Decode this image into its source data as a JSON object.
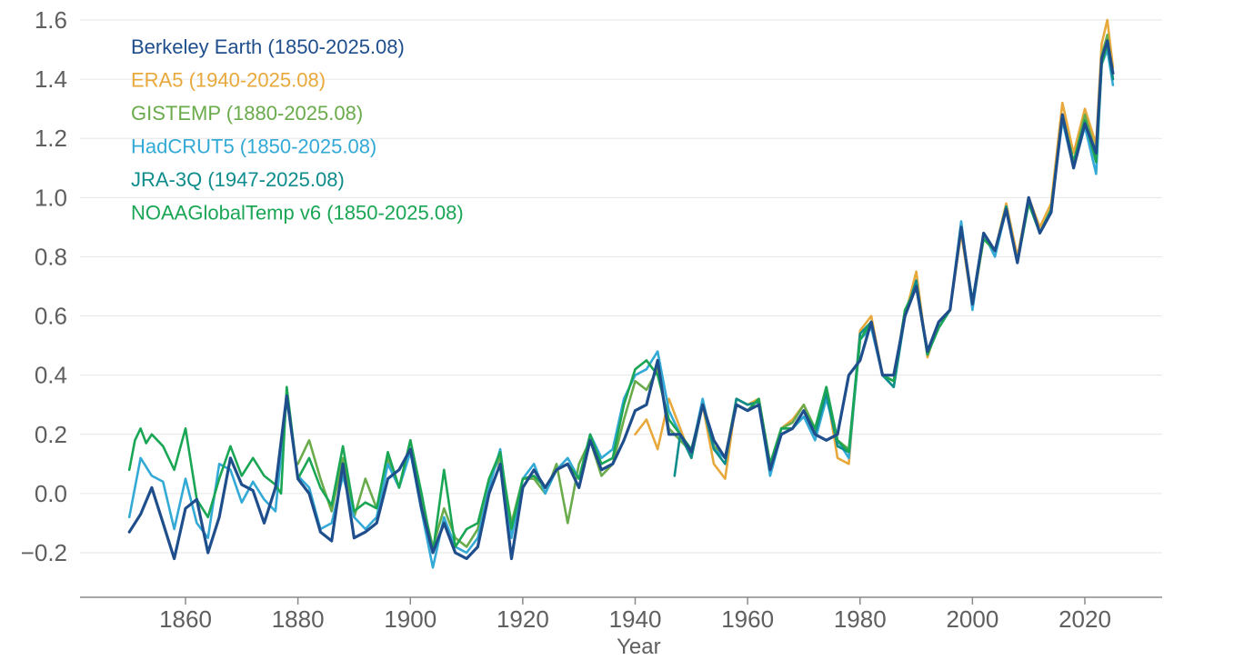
{
  "chart_data": {
    "type": "line",
    "title": "",
    "xlabel": "Year",
    "ylabel": "",
    "xlim": [
      1850,
      2025
    ],
    "ylim": [
      -0.3,
      1.6
    ],
    "xticks": [
      1860,
      1880,
      1900,
      1920,
      1940,
      1960,
      1980,
      2000,
      2020
    ],
    "yticks": [
      -0.2,
      0.0,
      0.2,
      0.4,
      0.6,
      0.8,
      1.0,
      1.2,
      1.4,
      1.6
    ],
    "ytick_labels": [
      "−0.2",
      "0.0",
      "0.2",
      "0.4",
      "0.6",
      "0.8",
      "1.0",
      "1.2",
      "1.4",
      "1.6"
    ],
    "grid": true,
    "legend_position": "top-left",
    "series": [
      {
        "name": "Berkeley Earth (1850-2025.08)",
        "color": "#1f4e8c",
        "x": [
          1850,
          1852,
          1854,
          1856,
          1858,
          1860,
          1862,
          1864,
          1866,
          1868,
          1870,
          1872,
          1874,
          1876,
          1878,
          1880,
          1882,
          1884,
          1886,
          1888,
          1890,
          1892,
          1894,
          1896,
          1898,
          1900,
          1902,
          1904,
          1906,
          1908,
          1910,
          1912,
          1914,
          1916,
          1918,
          1920,
          1922,
          1924,
          1926,
          1928,
          1930,
          1932,
          1934,
          1936,
          1938,
          1940,
          1942,
          1944,
          1946,
          1948,
          1950,
          1952,
          1954,
          1956,
          1958,
          1960,
          1962,
          1964,
          1966,
          1968,
          1970,
          1972,
          1974,
          1976,
          1978,
          1980,
          1982,
          1984,
          1986,
          1988,
          1990,
          1992,
          1994,
          1996,
          1998,
          2000,
          2002,
          2004,
          2006,
          2008,
          2010,
          2012,
          2014,
          2016,
          2018,
          2020,
          2022,
          2023,
          2024,
          2025
        ],
        "values": [
          -0.13,
          -0.07,
          0.02,
          -0.1,
          -0.22,
          -0.05,
          -0.02,
          -0.2,
          -0.08,
          0.12,
          0.03,
          0.01,
          -0.1,
          0.02,
          0.33,
          0.05,
          0.0,
          -0.13,
          -0.16,
          0.1,
          -0.15,
          -0.13,
          -0.1,
          0.05,
          0.08,
          0.15,
          -0.05,
          -0.2,
          -0.1,
          -0.2,
          -0.22,
          -0.18,
          0.0,
          0.1,
          -0.22,
          0.02,
          0.08,
          0.02,
          0.08,
          0.1,
          0.02,
          0.18,
          0.08,
          0.1,
          0.18,
          0.28,
          0.3,
          0.45,
          0.2,
          0.2,
          0.14,
          0.3,
          0.18,
          0.12,
          0.3,
          0.28,
          0.3,
          0.08,
          0.2,
          0.22,
          0.28,
          0.2,
          0.18,
          0.2,
          0.4,
          0.45,
          0.58,
          0.4,
          0.4,
          0.6,
          0.7,
          0.48,
          0.58,
          0.62,
          0.9,
          0.64,
          0.88,
          0.82,
          0.96,
          0.78,
          1.0,
          0.88,
          0.95,
          1.28,
          1.1,
          1.25,
          1.15,
          1.47,
          1.53,
          1.42
        ]
      },
      {
        "name": "ERA5 (1940-2025.08)",
        "color": "#e8a93c",
        "x": [
          1940,
          1942,
          1944,
          1946,
          1948,
          1950,
          1952,
          1954,
          1956,
          1958,
          1960,
          1962,
          1964,
          1966,
          1968,
          1970,
          1972,
          1974,
          1976,
          1978,
          1980,
          1982,
          1984,
          1986,
          1988,
          1990,
          1992,
          1994,
          1996,
          1998,
          2000,
          2002,
          2004,
          2006,
          2008,
          2010,
          2012,
          2014,
          2016,
          2018,
          2020,
          2022,
          2023,
          2024,
          2025
        ],
        "values": [
          0.2,
          0.25,
          0.15,
          0.32,
          0.22,
          0.12,
          0.3,
          0.1,
          0.05,
          0.32,
          0.3,
          0.32,
          0.1,
          0.22,
          0.25,
          0.3,
          0.2,
          0.35,
          0.12,
          0.1,
          0.55,
          0.6,
          0.4,
          0.38,
          0.6,
          0.75,
          0.46,
          0.58,
          0.62,
          0.88,
          0.63,
          0.86,
          0.82,
          0.98,
          0.8,
          1.0,
          0.9,
          0.98,
          1.32,
          1.15,
          1.3,
          1.18,
          1.52,
          1.6,
          1.44
        ]
      },
      {
        "name": "GISTEMP (1880-2025.08)",
        "color": "#6aab4b",
        "x": [
          1880,
          1882,
          1884,
          1886,
          1888,
          1890,
          1892,
          1894,
          1896,
          1898,
          1900,
          1902,
          1904,
          1906,
          1908,
          1910,
          1912,
          1914,
          1916,
          1918,
          1920,
          1922,
          1924,
          1926,
          1928,
          1930,
          1932,
          1934,
          1936,
          1938,
          1940,
          1942,
          1944,
          1946,
          1948,
          1950,
          1952,
          1954,
          1956,
          1958,
          1960,
          1962,
          1964,
          1966,
          1968,
          1970,
          1972,
          1974,
          1976,
          1978,
          1980,
          1982,
          1984,
          1986,
          1988,
          1990,
          1992,
          1994,
          1996,
          1998,
          2000,
          2002,
          2004,
          2006,
          2008,
          2010,
          2012,
          2014,
          2016,
          2018,
          2020,
          2022,
          2023,
          2024,
          2025
        ],
        "values": [
          0.1,
          0.18,
          0.05,
          -0.06,
          0.12,
          -0.08,
          0.05,
          -0.05,
          0.12,
          0.02,
          0.18,
          -0.02,
          -0.18,
          -0.05,
          -0.15,
          -0.18,
          -0.12,
          0.05,
          0.12,
          -0.1,
          0.05,
          0.05,
          0.0,
          0.1,
          -0.1,
          0.1,
          0.18,
          0.06,
          0.1,
          0.25,
          0.38,
          0.35,
          0.42,
          0.22,
          0.18,
          0.14,
          0.3,
          0.16,
          0.12,
          0.32,
          0.3,
          0.31,
          0.1,
          0.22,
          0.24,
          0.3,
          0.22,
          0.36,
          0.18,
          0.15,
          0.52,
          0.58,
          0.4,
          0.38,
          0.62,
          0.7,
          0.47,
          0.58,
          0.62,
          0.9,
          0.64,
          0.88,
          0.82,
          0.96,
          0.78,
          1.0,
          0.88,
          0.96,
          1.28,
          1.12,
          1.28,
          1.15,
          1.48,
          1.55,
          1.4
        ]
      },
      {
        "name": "HadCRUT5 (1850-2025.08)",
        "color": "#33a9d6",
        "x": [
          1850,
          1852,
          1854,
          1856,
          1858,
          1860,
          1862,
          1864,
          1866,
          1868,
          1870,
          1872,
          1874,
          1876,
          1878,
          1880,
          1882,
          1884,
          1886,
          1888,
          1890,
          1892,
          1894,
          1896,
          1898,
          1900,
          1902,
          1904,
          1906,
          1908,
          1910,
          1912,
          1914,
          1916,
          1918,
          1920,
          1922,
          1924,
          1926,
          1928,
          1930,
          1932,
          1934,
          1936,
          1938,
          1940,
          1942,
          1944,
          1946,
          1948,
          1950,
          1952,
          1954,
          1956,
          1958,
          1960,
          1962,
          1964,
          1966,
          1968,
          1970,
          1972,
          1974,
          1976,
          1978,
          1980,
          1982,
          1984,
          1986,
          1988,
          1990,
          1992,
          1994,
          1996,
          1998,
          2000,
          2002,
          2004,
          2006,
          2008,
          2010,
          2012,
          2014,
          2016,
          2018,
          2020,
          2022,
          2023,
          2024,
          2025
        ],
        "values": [
          -0.08,
          0.12,
          0.06,
          0.04,
          -0.12,
          0.05,
          -0.1,
          -0.15,
          0.1,
          0.08,
          -0.03,
          0.04,
          -0.02,
          -0.06,
          0.32,
          0.06,
          0.02,
          -0.12,
          -0.1,
          0.06,
          -0.08,
          -0.12,
          -0.08,
          0.1,
          0.02,
          0.14,
          -0.06,
          -0.25,
          -0.08,
          -0.18,
          -0.2,
          -0.15,
          0.02,
          0.15,
          -0.15,
          0.05,
          0.1,
          0.0,
          0.08,
          0.12,
          0.05,
          0.2,
          0.12,
          0.15,
          0.32,
          0.4,
          0.42,
          0.48,
          0.28,
          0.2,
          0.14,
          0.32,
          0.15,
          0.12,
          0.3,
          0.28,
          0.3,
          0.06,
          0.2,
          0.22,
          0.26,
          0.18,
          0.32,
          0.18,
          0.12,
          0.52,
          0.56,
          0.4,
          0.36,
          0.6,
          0.7,
          0.47,
          0.56,
          0.62,
          0.92,
          0.62,
          0.88,
          0.8,
          0.96,
          0.78,
          0.98,
          0.88,
          0.96,
          1.26,
          1.1,
          1.24,
          1.08,
          1.45,
          1.5,
          1.38
        ]
      },
      {
        "name": "JRA-3Q (1947-2025.08)",
        "color": "#0f8c8c",
        "x": [
          1947,
          1948,
          1950,
          1952,
          1954,
          1956,
          1958,
          1960,
          1962,
          1964,
          1966,
          1968,
          1970,
          1972,
          1974,
          1976,
          1978,
          1980,
          1982,
          1984,
          1986,
          1988,
          1990,
          1992,
          1994,
          1996,
          1998,
          2000,
          2002,
          2004,
          2006,
          2008,
          2010,
          2012,
          2014,
          2016,
          2018,
          2020,
          2022,
          2023,
          2024,
          2025
        ],
        "values": [
          0.06,
          0.2,
          0.12,
          0.3,
          0.15,
          0.1,
          0.32,
          0.3,
          0.31,
          0.08,
          0.22,
          0.22,
          0.28,
          0.2,
          0.34,
          0.16,
          0.14,
          0.54,
          0.58,
          0.4,
          0.36,
          0.6,
          0.72,
          0.47,
          0.58,
          0.62,
          0.9,
          0.65,
          0.88,
          0.82,
          0.97,
          0.78,
          1.0,
          0.88,
          0.96,
          1.28,
          1.12,
          1.26,
          1.12,
          1.46,
          1.52,
          1.4
        ]
      },
      {
        "name": "NOAAGlobalTemp v6 (1850-2025.08)",
        "color": "#1aa655",
        "x": [
          1850,
          1851,
          1852,
          1853,
          1854,
          1856,
          1858,
          1860,
          1862,
          1864,
          1866,
          1868,
          1870,
          1872,
          1874,
          1876,
          1877,
          1878,
          1880,
          1882,
          1884,
          1886,
          1888,
          1890,
          1892,
          1894,
          1896,
          1898,
          1900,
          1902,
          1904,
          1906,
          1908,
          1910,
          1912,
          1914,
          1916,
          1918,
          1920,
          1922,
          1924,
          1926,
          1928,
          1930,
          1932,
          1934,
          1936,
          1938,
          1940,
          1942,
          1944,
          1946,
          1948,
          1950,
          1952,
          1954,
          1956,
          1958,
          1960,
          1962,
          1964,
          1966,
          1968,
          1970,
          1972,
          1974,
          1976,
          1978,
          1980,
          1982,
          1984,
          1986,
          1988,
          1990,
          1992,
          1994,
          1996,
          1998,
          2000,
          2002,
          2004,
          2006,
          2008,
          2010,
          2012,
          2014,
          2016,
          2018,
          2020,
          2022,
          2023,
          2024,
          2025
        ],
        "values": [
          0.08,
          0.18,
          0.22,
          0.17,
          0.2,
          0.16,
          0.08,
          0.22,
          -0.02,
          -0.08,
          0.05,
          0.16,
          0.06,
          0.12,
          0.06,
          0.03,
          0.0,
          0.36,
          0.05,
          0.12,
          0.02,
          -0.04,
          0.16,
          -0.06,
          -0.03,
          -0.05,
          0.14,
          0.02,
          0.18,
          0.0,
          -0.2,
          0.08,
          -0.18,
          -0.12,
          -0.1,
          0.05,
          0.14,
          -0.12,
          0.05,
          0.06,
          0.02,
          0.08,
          0.1,
          0.05,
          0.2,
          0.1,
          0.12,
          0.3,
          0.42,
          0.45,
          0.4,
          0.25,
          0.2,
          0.15,
          0.3,
          0.18,
          0.12,
          0.3,
          0.28,
          0.32,
          0.1,
          0.22,
          0.22,
          0.28,
          0.22,
          0.36,
          0.18,
          0.14,
          0.52,
          0.58,
          0.4,
          0.38,
          0.62,
          0.7,
          0.47,
          0.56,
          0.62,
          0.9,
          0.64,
          0.86,
          0.82,
          0.96,
          0.78,
          0.98,
          0.88,
          0.96,
          1.28,
          1.12,
          1.26,
          1.12,
          1.45,
          1.52,
          1.42
        ]
      }
    ]
  }
}
